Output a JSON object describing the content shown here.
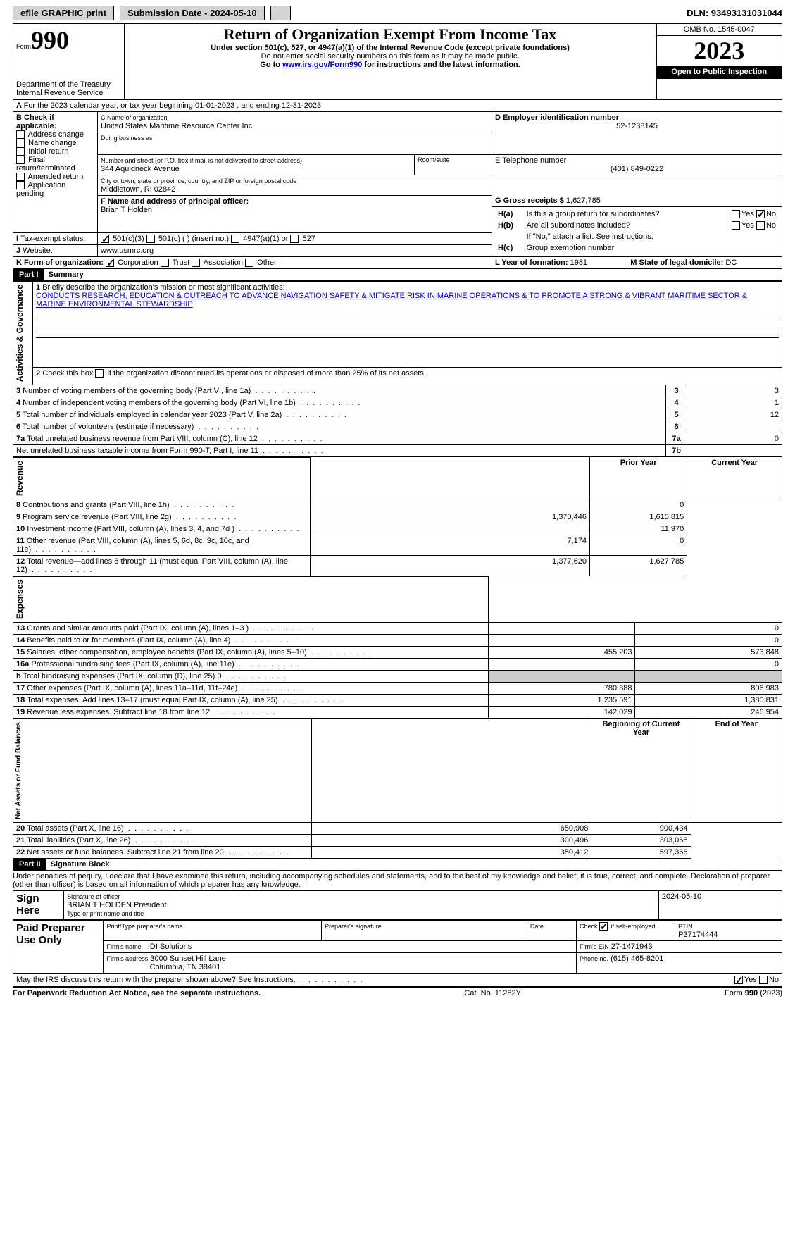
{
  "topbar": {
    "efile": "efile GRAPHIC print",
    "submission_label": "Submission Date - 2024-05-10",
    "dln": "DLN: 93493131031044"
  },
  "header": {
    "form_small": "Form",
    "form_big": "990",
    "title": "Return of Organization Exempt From Income Tax",
    "subtitle": "Under section 501(c), 527, or 4947(a)(1) of the Internal Revenue Code (except private foundations)",
    "warn": "Do not enter social security numbers on this form as it may be made public.",
    "goto_pre": "Go to ",
    "goto_link": "www.irs.gov/Form990",
    "goto_post": " for instructions and the latest information.",
    "omb": "OMB No. 1545-0047",
    "year": "2023",
    "open": "Open to Public Inspection",
    "dept": "Department of the Treasury",
    "irs": "Internal Revenue Service"
  },
  "A": {
    "text": "For the 2023 calendar year, or tax year beginning 01-01-2023    , and ending 12-31-2023"
  },
  "B": {
    "label": "B Check if applicable:",
    "addr": "Address change",
    "name": "Name change",
    "init": "Initial return",
    "final": "Final return/terminated",
    "amend": "Amended return",
    "app": "Application pending"
  },
  "C": {
    "name_label": "C Name of organization",
    "name": "United States Maritime Resource Center Inc",
    "dba_label": "Doing business as",
    "street_label": "Number and street (or P.O. box if mail is not delivered to street address)",
    "room_label": "Room/suite",
    "street": "344 Aquidneck Avenue",
    "city_label": "City or town, state or province, country, and ZIP or foreign postal code",
    "city": "Middletown, RI  02842"
  },
  "D": {
    "label": "D Employer identification number",
    "val": "52-1238145"
  },
  "E": {
    "label": "E Telephone number",
    "val": "(401) 849-0222"
  },
  "G": {
    "label": "G Gross receipts $",
    "val": "1,627,785"
  },
  "F": {
    "label": "F  Name and address of principal officer:",
    "name": "Brian T Holden"
  },
  "H": {
    "a": "Is this a group return for subordinates?",
    "b": "Are all subordinates included?",
    "b2": "If \"No,\" attach a list. See instructions.",
    "c": "Group exemption number"
  },
  "I": {
    "label": "Tax-exempt status:",
    "c3": "501(c)(3)",
    "c": "501(c) (  ) (insert no.)",
    "a1": "4947(a)(1) or",
    "s527": "527"
  },
  "J": {
    "label": "Website:",
    "val": "www.usmrc.org"
  },
  "K": {
    "label": "K Form of organization:",
    "corp": "Corporation",
    "trust": "Trust",
    "assoc": "Association",
    "other": "Other"
  },
  "L": {
    "label": "L Year of formation:",
    "val": "1981"
  },
  "M": {
    "label": "M State of legal domicile:",
    "val": "DC"
  },
  "part1": {
    "title": "Summary",
    "q1": "Briefly describe the organization's mission or most significant activities:",
    "mission": "CONDUCTS RESEARCH, EDUCATION & OUTREACH TO ADVANCE NAVIGATION SAFETY & MITIGATE RISK IN MARINE OPERATIONS & TO PROMOTE A STRONG & VIBRANT MARITIME SECTOR & MARINE ENVIRONMENTAL STEWARDSHIP",
    "q2": "Check this box      if the organization discontinued its operations or disposed of more than 25% of its net assets.",
    "lines": [
      {
        "n": "3",
        "t": "Number of voting members of the governing body (Part VI, line 1a)",
        "box": "3",
        "v": "3"
      },
      {
        "n": "4",
        "t": "Number of independent voting members of the governing body (Part VI, line 1b)",
        "box": "4",
        "v": "1"
      },
      {
        "n": "5",
        "t": "Total number of individuals employed in calendar year 2023 (Part V, line 2a)",
        "box": "5",
        "v": "12"
      },
      {
        "n": "6",
        "t": "Total number of volunteers (estimate if necessary)",
        "box": "6",
        "v": ""
      },
      {
        "n": "7a",
        "t": "Total unrelated business revenue from Part VIII, column (C), line 12",
        "box": "7a",
        "v": "0"
      },
      {
        "n": "",
        "t": "Net unrelated business taxable income from Form 990-T, Part I, line 11",
        "box": "7b",
        "v": ""
      }
    ],
    "prior": "Prior Year",
    "current": "Current Year",
    "rev": [
      {
        "n": "8",
        "t": "Contributions and grants (Part VIII, line 1h)",
        "p": "",
        "c": "0"
      },
      {
        "n": "9",
        "t": "Program service revenue (Part VIII, line 2g)",
        "p": "1,370,446",
        "c": "1,615,815"
      },
      {
        "n": "10",
        "t": "Investment income (Part VIII, column (A), lines 3, 4, and 7d )",
        "p": "",
        "c": "11,970"
      },
      {
        "n": "11",
        "t": "Other revenue (Part VIII, column (A), lines 5, 6d, 8c, 9c, 10c, and 11e)",
        "p": "7,174",
        "c": "0"
      },
      {
        "n": "12",
        "t": "Total revenue—add lines 8 through 11 (must equal Part VIII, column (A), line 12)",
        "p": "1,377,620",
        "c": "1,627,785"
      }
    ],
    "exp": [
      {
        "n": "13",
        "t": "Grants and similar amounts paid (Part IX, column (A), lines 1–3 )",
        "p": "",
        "c": "0"
      },
      {
        "n": "14",
        "t": "Benefits paid to or for members (Part IX, column (A), line 4)",
        "p": "",
        "c": "0"
      },
      {
        "n": "15",
        "t": "Salaries, other compensation, employee benefits (Part IX, column (A), lines 5–10)",
        "p": "455,203",
        "c": "573,848"
      },
      {
        "n": "16a",
        "t": "Professional fundraising fees (Part IX, column (A), line 11e)",
        "p": "",
        "c": "0"
      },
      {
        "n": "b",
        "t": "Total fundraising expenses (Part IX, column (D), line 25) 0",
        "p": "grey",
        "c": "grey"
      },
      {
        "n": "17",
        "t": "Other expenses (Part IX, column (A), lines 11a–11d, 11f–24e)",
        "p": "780,388",
        "c": "806,983"
      },
      {
        "n": "18",
        "t": "Total expenses. Add lines 13–17 (must equal Part IX, column (A), line 25)",
        "p": "1,235,591",
        "c": "1,380,831"
      },
      {
        "n": "19",
        "t": "Revenue less expenses. Subtract line 18 from line 12",
        "p": "142,029",
        "c": "246,954"
      }
    ],
    "boy": "Beginning of Current Year",
    "eoy": "End of Year",
    "net": [
      {
        "n": "20",
        "t": "Total assets (Part X, line 16)",
        "p": "650,908",
        "c": "900,434"
      },
      {
        "n": "21",
        "t": "Total liabilities (Part X, line 26)",
        "p": "300,496",
        "c": "303,068"
      },
      {
        "n": "22",
        "t": "Net assets or fund balances. Subtract line 21 from line 20",
        "p": "350,412",
        "c": "597,366"
      }
    ],
    "sections": {
      "ag": "Activities & Governance",
      "rev": "Revenue",
      "exp": "Expenses",
      "net": "Net Assets or Fund Balances"
    }
  },
  "part2": {
    "title": "Signature Block",
    "decl": "Under penalties of perjury, I declare that I have examined this return, including accompanying schedules and statements, and to the best of my knowledge and belief, it is true, correct, and complete. Declaration of preparer (other than officer) is based on all information of which preparer has any knowledge."
  },
  "sign": {
    "here": "Sign Here",
    "sof": "Signature of officer",
    "date": "2024-05-10",
    "name": "BRIAN T HOLDEN  President",
    "type": "Type or print name and title"
  },
  "paid": {
    "title": "Paid Preparer Use Only",
    "pname": "Print/Type preparer's name",
    "psig": "Preparer's signature",
    "pdate": "Date",
    "check": "Check      if self-employed",
    "ptin": "PTIN",
    "ptin_v": "P37174444",
    "fname": "Firm's name",
    "fname_v": "IDI Solutions",
    "fein": "Firm's EIN",
    "fein_v": "27-1471943",
    "faddr": "Firm's address",
    "faddr_v1": "3000 Sunset Hill Lane",
    "faddr_v2": "Columbia, TN  38401",
    "phone": "Phone no.",
    "phone_v": "(615) 465-8201"
  },
  "irsq": {
    "q": "May the IRS discuss this return with the preparer shown above? See Instructions.",
    "yes": "Yes",
    "no": "No"
  },
  "footer": {
    "pra": "For Paperwork Reduction Act Notice, see the separate instructions.",
    "cat": "Cat. No. 11282Y",
    "form": "Form 990 (2023)"
  }
}
